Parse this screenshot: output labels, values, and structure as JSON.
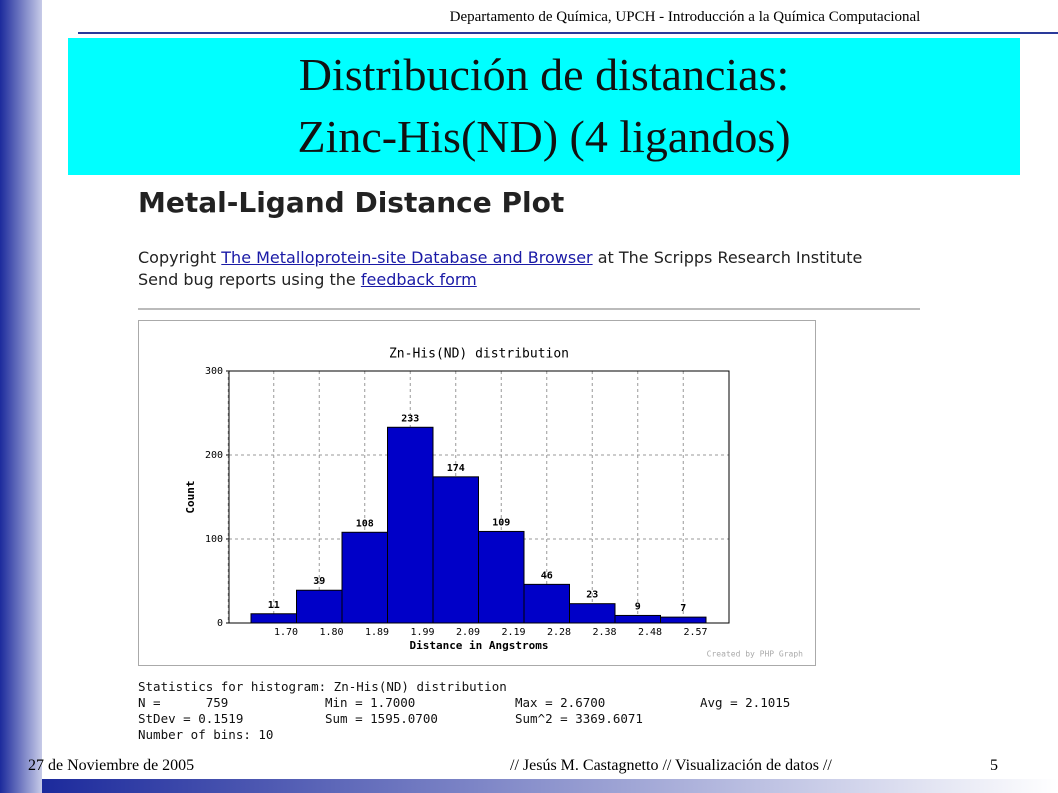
{
  "header": "Departamento de Química, UPCH - Introducción a la Química Computacional",
  "title": [
    "Distribución de distancias:",
    "Zinc-His(ND) (4 ligandos)"
  ],
  "screenshot": {
    "heading": "Metal-Ligand Distance Plot",
    "copyright": {
      "prefix": "Copyright",
      "link": "The Metalloprotein-site Database and Browser",
      "suffix": "at The Scripps Research Institute"
    },
    "bugs": {
      "prefix": "Send bug reports using the",
      "link": "feedback form"
    }
  },
  "chart_data": {
    "type": "bar",
    "title": "Zn-His(ND) distribution",
    "x_label": "Distance in Angstroms",
    "y_label": "Count",
    "categories": [
      "1.70",
      "1.80",
      "1.89",
      "1.99",
      "2.09",
      "2.19",
      "2.28",
      "2.38",
      "2.48",
      "2.57"
    ],
    "values": [
      11,
      39,
      108,
      233,
      174,
      109,
      46,
      23,
      9,
      7
    ],
    "color": "#0000c8",
    "ylim": [
      0,
      300
    ],
    "yticks": [
      0,
      100,
      200,
      300
    ],
    "grid": true,
    "credit": "Created by PHP Graph"
  },
  "stats": {
    "title": "Statistics for histogram: Zn-His(ND) distribution",
    "rows": [
      [
        "N =      759",
        "Min = 1.7000",
        "Max = 2.6700",
        "Avg = 2.1015"
      ],
      [
        "StDev = 0.1519",
        "Sum = 1595.0700",
        "Sum^2 = 3369.6071"
      ],
      [
        "Number of bins: 10"
      ]
    ]
  },
  "footer": {
    "date": "27 de Noviembre de 2005",
    "author": "// Jesús M. Castagnetto // Visualización de datos //",
    "page": "5"
  }
}
